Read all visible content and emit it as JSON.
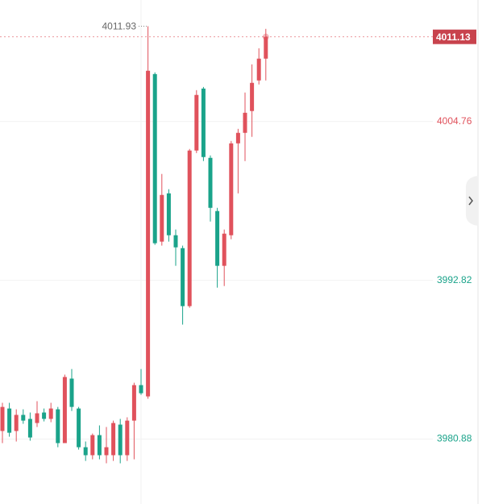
{
  "chart_data": {
    "type": "candlestick",
    "open": [
      3981.49,
      3983.18,
      3981.49,
      3982.7,
      3982.4,
      3982.09,
      3982.88,
      3982.4,
      3983.12,
      3980.58,
      3985.43,
      3983.18,
      3980.27,
      3979.67,
      3981.18,
      3979.67,
      3979.67,
      3981.97,
      3979.67,
      3982.27,
      3984.94,
      3984.09,
      4008.33,
      3995.73,
      3999.36,
      3996.21,
      3995.24,
      3990.88,
      4002.58,
      4007.24,
      4002.03,
      3998.03,
      3993.91,
      3996.21,
      4003.12,
      4003.91,
      4005.55,
      4007.85,
      4009.49
    ],
    "high": [
      3983.61,
      3983.61,
      3983.12,
      3983.12,
      3982.88,
      3983.73,
      3983.18,
      3983.61,
      3983.3,
      3985.73,
      3986.15,
      3983.3,
      3980.7,
      3981.3,
      3981.91,
      3981.79,
      3982.27,
      3982.4,
      3982.52,
      3985.12,
      3986.15,
      4011.93,
      4008.46,
      4000.82,
      3999.67,
      3996.64,
      3995.43,
      4002.7,
      4007.12,
      4007.36,
      4002.21,
      3998.27,
      3996.64,
      4003.3,
      4004.21,
      4006.94,
      4009.06,
      4010.27,
      4011.73
    ],
    "low": [
      3980.58,
      3981.06,
      3980.7,
      3982.03,
      3980.76,
      3981.79,
      3982.21,
      3982.15,
      3980.27,
      3980.88,
      3983.0,
      3980.09,
      3979.24,
      3979.36,
      3979.36,
      3979.06,
      3979.24,
      3979.06,
      3979.24,
      3979.36,
      3984.21,
      3983.91,
      3995.49,
      3995.43,
      3995.73,
      3993.91,
      3989.49,
      3990.76,
      4002.39,
      4001.79,
      3997.24,
      3992.27,
      3992.39,
      3995.91,
      3999.36,
      4001.79,
      4003.61,
      4007.55,
      4007.85
    ],
    "close": [
      3983.3,
      3981.36,
      3982.7,
      3982.27,
      3981.0,
      3982.82,
      3982.4,
      3983.18,
      3980.58,
      3985.55,
      3983.3,
      3980.27,
      3979.67,
      3981.18,
      3979.67,
      3980.27,
      3982.09,
      3979.67,
      3982.27,
      3984.94,
      3984.33,
      4008.58,
      3995.61,
      3999.24,
      3996.21,
      3995.3,
      3990.88,
      4002.58,
      4006.76,
      4002.09,
      3998.27,
      3993.91,
      3996.33,
      4003.12,
      4003.91,
      4005.42,
      4007.67,
      4009.49,
      4011.13
    ],
    "up_color": "#e0525c",
    "down_color": "#1aa38a",
    "ylim": [
      3976.0,
      4013.9
    ],
    "yticks": [
      3980.88,
      3992.82,
      4004.76
    ],
    "ytick_colors": [
      "#1aa38a",
      "#1aa38a",
      "#e0525c"
    ],
    "grid": true
  }
}
